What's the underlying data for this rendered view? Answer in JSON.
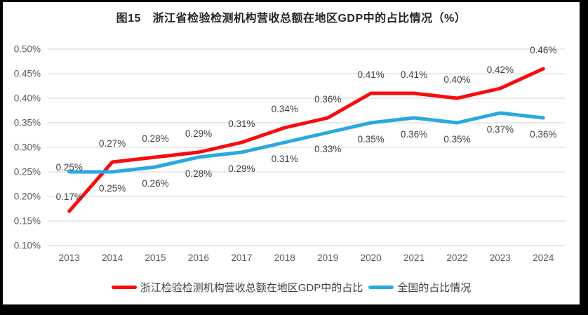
{
  "title": "图15　浙江省检验检测机构营收总额在地区GDP中的占比情况（%）",
  "colors": {
    "zhejiang_line": "#F70D0D",
    "national_line": "#29A9DF",
    "grid": "#DCDCDC",
    "axis_text": "#595959",
    "label_text": "#3F3F3F",
    "title_text": "#262626",
    "frame": "#000000",
    "background": "#FFFFFF"
  },
  "legend": {
    "items": [
      {
        "label": "浙江检验检测机构营收总额在地区GDP中的占比"
      },
      {
        "label": "全国的占比情况"
      }
    ]
  },
  "chart_data": {
    "type": "line",
    "title": "图15　浙江省检验检测机构营收总额在地区GDP中的占比情况（%）",
    "categories": [
      "2013",
      "2014",
      "2015",
      "2016",
      "2017",
      "2018",
      "2019",
      "2020",
      "2021",
      "2022",
      "2023",
      "2024"
    ],
    "series": [
      {
        "name": "浙江检验检测机构营收总额在地区GDP中的占比",
        "color": "#F70D0D",
        "values": [
          0.17,
          0.27,
          0.28,
          0.29,
          0.31,
          0.34,
          0.36,
          0.41,
          0.41,
          0.4,
          0.42,
          0.46
        ],
        "labels": [
          "0.17%",
          "0.27%",
          "0.28%",
          "0.29%",
          "0.31%",
          "0.34%",
          "0.36%",
          "0.41%",
          "0.41%",
          "0.40%",
          "0.42%",
          "0.46%"
        ],
        "label_dy": -22,
        "label_dy_overrides": {
          "0": -16
        }
      },
      {
        "name": "全国的占比情况",
        "color": "#29A9DF",
        "values": [
          0.25,
          0.25,
          0.26,
          0.28,
          0.29,
          0.31,
          0.33,
          0.35,
          0.36,
          0.35,
          0.37,
          0.36
        ],
        "labels": [
          "0.25%",
          "0.25%",
          "0.26%",
          "0.28%",
          "0.29%",
          "0.31%",
          "0.33%",
          "0.35%",
          "0.36%",
          "0.35%",
          "0.37%",
          "0.36%"
        ],
        "label_dy": 28,
        "label_dy_overrides": {
          "0": -2
        }
      }
    ],
    "xlabel": "",
    "ylabel": "",
    "ylim": [
      0.1,
      0.5
    ],
    "ytick_step": 0.05,
    "ytick_labels": [
      "0.10%",
      "0.15%",
      "0.20%",
      "0.25%",
      "0.30%",
      "0.35%",
      "0.40%",
      "0.45%",
      "0.50%"
    ],
    "grid": true,
    "legend_position": "bottom"
  }
}
